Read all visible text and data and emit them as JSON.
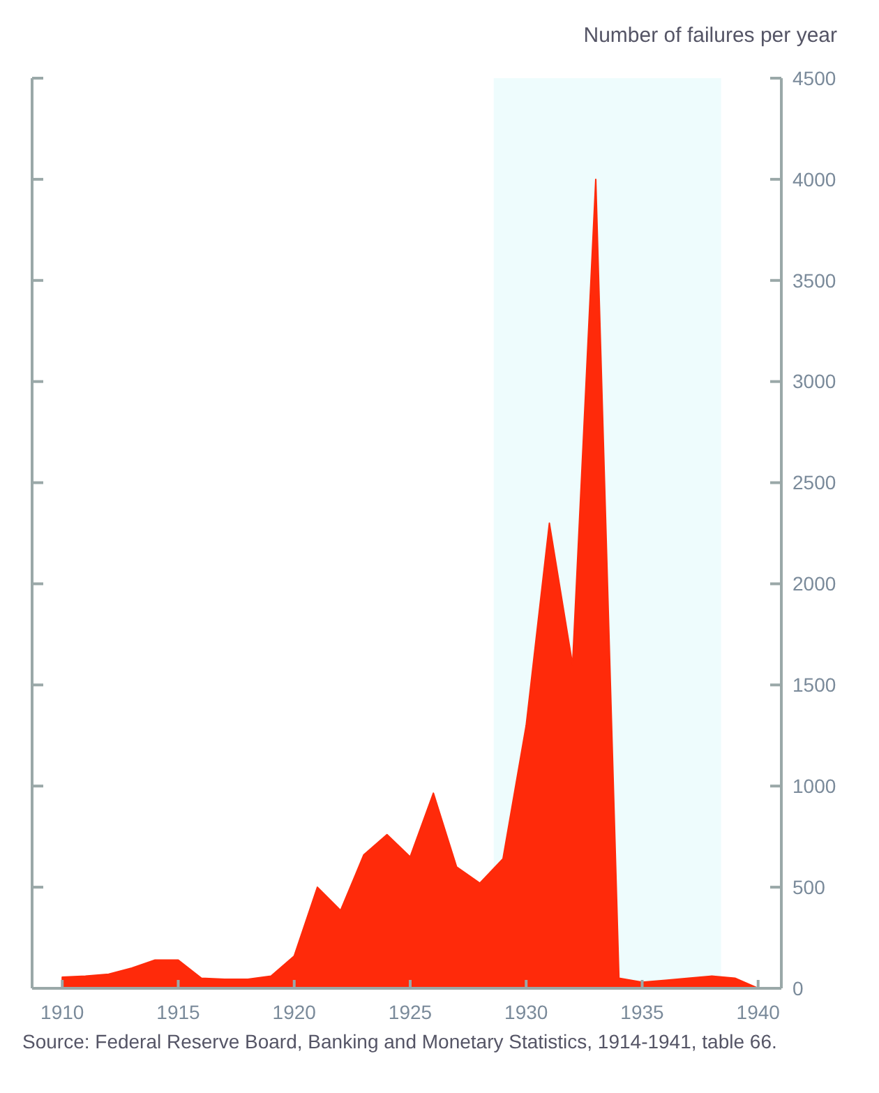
{
  "chart_data": {
    "type": "area",
    "ylabel": "Number of failures per year",
    "x": [
      1910,
      1911,
      1912,
      1913,
      1914,
      1915,
      1916,
      1917,
      1918,
      1919,
      1920,
      1921,
      1922,
      1923,
      1924,
      1925,
      1926,
      1927,
      1928,
      1929,
      1930,
      1931,
      1932,
      1933,
      1934,
      1935,
      1936,
      1937,
      1938,
      1939,
      1940
    ],
    "series": [
      {
        "color": "#ff2a0a",
        "values": [
          55,
          60,
          70,
          100,
          140,
          140,
          50,
          45,
          45,
          60,
          160,
          500,
          385,
          660,
          760,
          650,
          965,
          600,
          520,
          640,
          1300,
          2300,
          1600,
          4000,
          50,
          30,
          40,
          50,
          60,
          50,
          0
        ]
      }
    ],
    "xlim": [
      1908.7,
      1941
    ],
    "xticks": [
      1910,
      1915,
      1920,
      1925,
      1930,
      1935,
      1940
    ],
    "ylim": [
      0,
      4500
    ],
    "yticks": [
      0,
      500,
      1000,
      1500,
      2000,
      2500,
      3000,
      3500,
      4000,
      4500
    ],
    "bands": [
      {
        "axis": "x",
        "from": 1928.6,
        "to": 1938.4,
        "color": "#eefcfd"
      }
    ],
    "annotations": [
      "Source: Federal Reserve Board, Banking and Monetary Statistics, 1914-1941, table 66."
    ]
  }
}
